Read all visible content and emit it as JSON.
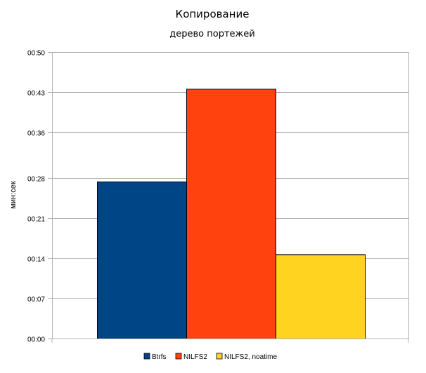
{
  "chart_data": {
    "type": "bar",
    "title": "Копирование",
    "subtitle": "дерево портежей",
    "ylabel": "мин:сек",
    "xlabel": "",
    "y_unit": "seconds",
    "ylim": [
      0,
      50
    ],
    "y_tick_values": [
      0,
      7,
      14,
      21,
      28,
      36,
      43,
      50
    ],
    "y_tick_labels": [
      "00:00",
      "00:07",
      "00:14",
      "00:21",
      "00:28",
      "00:36",
      "00:43",
      "00:50"
    ],
    "grid": true,
    "legend_position": "bottom",
    "series": [
      {
        "name": "Btrfs",
        "value": 27.4,
        "color": "#004586"
      },
      {
        "name": "NILFS2",
        "value": 43.6,
        "color": "#ff420e"
      },
      {
        "name": "NILFS2, noatime",
        "value": 14.7,
        "color": "#ffd320"
      }
    ]
  }
}
